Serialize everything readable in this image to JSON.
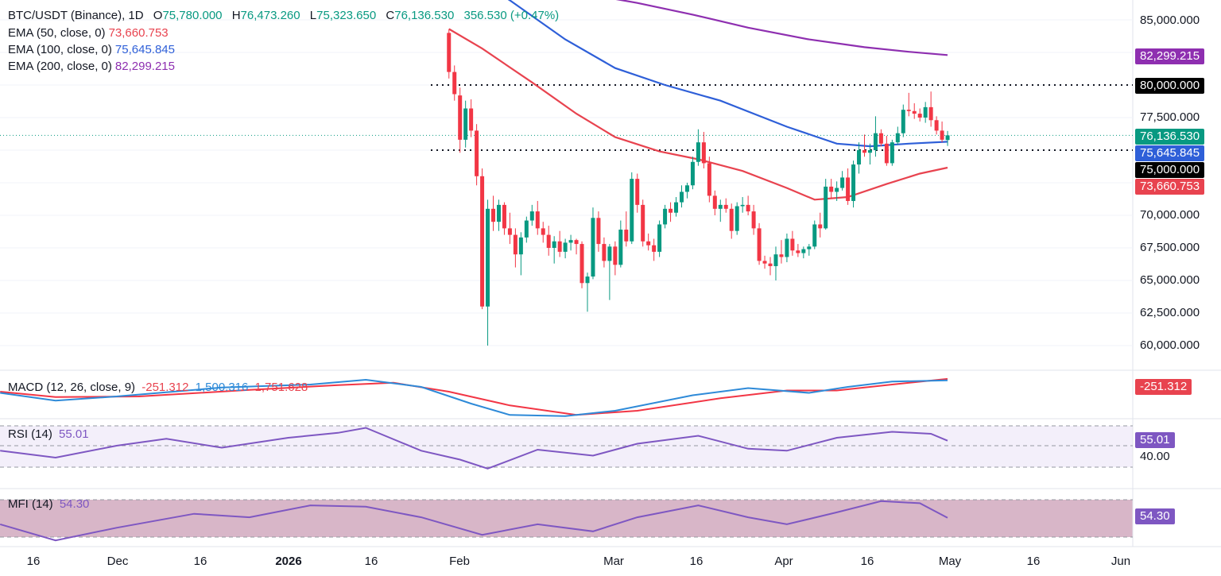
{
  "header": {
    "symbol": "BTC/USDT (Binance), 1D",
    "open_label": "O",
    "open": "75,780.000",
    "high_label": "H",
    "high": "76,473.260",
    "low_label": "L",
    "low": "75,323.650",
    "close_label": "C",
    "close": "76,136.530",
    "change": "356.530 (+0.47%)"
  },
  "ema": [
    {
      "label": "EMA (50, close, 0)",
      "value": "73,660.753",
      "color": "#e8434f"
    },
    {
      "label": "EMA (100, close, 0)",
      "value": "75,645.845",
      "color": "#2e5fd8"
    },
    {
      "label": "EMA (200, close, 0)",
      "value": "82,299.215",
      "color": "#8e2fb0"
    }
  ],
  "macd": {
    "label": "MACD (12, 26, close, 9)",
    "hist": "-251.312",
    "macd": "1,500.316",
    "signal": "1,751.628",
    "tag": "-251.312"
  },
  "rsi": {
    "label": "RSI (14)",
    "value": "55.01",
    "level": "40.00"
  },
  "mfi": {
    "label": "MFI (14)",
    "value": "54.30"
  },
  "price_axis": {
    "ticks": [
      "85,000.000",
      "77,500.000",
      "70,000.000",
      "67,500.000",
      "65,000.000",
      "62,500.000",
      "60,000.000"
    ],
    "tags": {
      "ema200": "82,299.215",
      "level80": "80,000.000",
      "last": "76,136.530",
      "ema100": "75,645.845",
      "level75": "75,000.000",
      "ema50": "73,660.753"
    }
  },
  "time_axis": [
    {
      "label": "16",
      "bold": false
    },
    {
      "label": "Dec",
      "bold": false
    },
    {
      "label": "16",
      "bold": false
    },
    {
      "label": "2026",
      "bold": true
    },
    {
      "label": "16",
      "bold": false
    },
    {
      "label": "Feb",
      "bold": false
    },
    {
      "label": "Mar",
      "bold": false
    },
    {
      "label": "16",
      "bold": false
    },
    {
      "label": "Apr",
      "bold": false
    },
    {
      "label": "16",
      "bold": false
    },
    {
      "label": "May",
      "bold": false
    },
    {
      "label": "16",
      "bold": false
    },
    {
      "label": "Jun",
      "bold": false
    }
  ],
  "chart_data": {
    "type": "candlestick",
    "symbol": "BTC/USDT",
    "interval": "1D",
    "ylim": [
      59000,
      87000
    ],
    "x_start": "2025-11-10",
    "x_end": "2026-06-04",
    "horizontal_levels": [
      80000,
      75000
    ],
    "candles": [
      [
        "2026-01-30",
        84000,
        84300,
        80500,
        81000
      ],
      [
        "2026-01-31",
        81000,
        81500,
        78800,
        79300
      ],
      [
        "2026-02-01",
        79200,
        79800,
        74800,
        75800
      ],
      [
        "2026-02-02",
        75800,
        78800,
        75200,
        78200
      ],
      [
        "2026-02-03",
        78200,
        78900,
        76000,
        76500
      ],
      [
        "2026-02-04",
        76500,
        77000,
        72300,
        73000
      ],
      [
        "2026-02-05",
        73000,
        73600,
        62800,
        63000
      ],
      [
        "2026-02-06",
        63000,
        71200,
        60000,
        70500
      ],
      [
        "2026-02-07",
        70500,
        71500,
        68800,
        69500
      ],
      [
        "2026-02-08",
        69500,
        71200,
        68800,
        70800
      ],
      [
        "2026-02-09",
        70800,
        71000,
        68500,
        69000
      ],
      [
        "2026-02-10",
        69000,
        70200,
        67800,
        68500
      ],
      [
        "2026-02-11",
        68500,
        69000,
        66000,
        67000
      ],
      [
        "2026-02-12",
        67000,
        68700,
        65400,
        68300
      ],
      [
        "2026-02-13",
        68300,
        69900,
        67900,
        69600
      ],
      [
        "2026-02-14",
        69600,
        70800,
        69200,
        70300
      ],
      [
        "2026-02-15",
        70300,
        71100,
        68500,
        69000
      ],
      [
        "2026-02-16",
        69000,
        69500,
        67900,
        68500
      ],
      [
        "2026-02-17",
        68500,
        69200,
        66900,
        67500
      ],
      [
        "2026-02-18",
        67500,
        68400,
        66300,
        68000
      ],
      [
        "2026-02-19",
        68000,
        68800,
        66800,
        67200
      ],
      [
        "2026-02-20",
        67200,
        68200,
        66700,
        67900
      ],
      [
        "2026-02-21",
        67900,
        68500,
        67300,
        68100
      ],
      [
        "2026-02-22",
        68100,
        68200,
        67000,
        67800
      ],
      [
        "2026-02-23",
        67800,
        68000,
        64400,
        64800
      ],
      [
        "2026-02-24",
        64800,
        65600,
        62600,
        65300
      ],
      [
        "2026-02-25",
        65300,
        70600,
        65100,
        69800
      ],
      [
        "2026-02-26",
        69800,
        70300,
        67200,
        67800
      ],
      [
        "2026-02-27",
        67800,
        68300,
        66000,
        66500
      ],
      [
        "2026-02-28",
        66500,
        67800,
        63500,
        67600
      ],
      [
        "2026-03-01",
        67600,
        68000,
        65400,
        66200
      ],
      [
        "2026-03-02",
        66200,
        69600,
        66000,
        68900
      ],
      [
        "2026-03-03",
        68900,
        70300,
        67600,
        68000
      ],
      [
        "2026-03-04",
        68000,
        73300,
        67800,
        72800
      ],
      [
        "2026-03-05",
        72800,
        73200,
        70200,
        70800
      ],
      [
        "2026-03-06",
        70800,
        71200,
        67600,
        68000
      ],
      [
        "2026-03-07",
        68000,
        68600,
        67300,
        67700
      ],
      [
        "2026-03-08",
        67700,
        68200,
        66500,
        67200
      ],
      [
        "2026-03-09",
        67200,
        69600,
        66800,
        69300
      ],
      [
        "2026-03-10",
        69300,
        70800,
        69000,
        70500
      ],
      [
        "2026-03-11",
        70500,
        71000,
        69500,
        70200
      ],
      [
        "2026-03-12",
        70200,
        71400,
        69900,
        71000
      ],
      [
        "2026-03-13",
        71000,
        72300,
        70600,
        71800
      ],
      [
        "2026-03-14",
        71800,
        72500,
        71300,
        72300
      ],
      [
        "2026-03-15",
        72300,
        74500,
        72000,
        74100
      ],
      [
        "2026-03-16",
        74100,
        76600,
        73800,
        75600
      ],
      [
        "2026-03-17",
        75600,
        76400,
        73600,
        74000
      ],
      [
        "2026-03-18",
        74000,
        74500,
        71000,
        71500
      ],
      [
        "2026-03-19",
        71500,
        71900,
        70000,
        70500
      ],
      [
        "2026-03-20",
        70500,
        71200,
        69500,
        70800
      ],
      [
        "2026-03-21",
        70800,
        71300,
        70200,
        70500
      ],
      [
        "2026-03-22",
        70500,
        70900,
        68200,
        68800
      ],
      [
        "2026-03-23",
        68800,
        71000,
        68500,
        70700
      ],
      [
        "2026-03-24",
        70700,
        71400,
        70200,
        70800
      ],
      [
        "2026-03-25",
        70800,
        71500,
        70000,
        70300
      ],
      [
        "2026-03-26",
        70300,
        70800,
        68500,
        69000
      ],
      [
        "2026-03-27",
        69000,
        69400,
        66200,
        66500
      ],
      [
        "2026-03-28",
        66500,
        66900,
        65900,
        66300
      ],
      [
        "2026-03-29",
        66300,
        66800,
        65400,
        66100
      ],
      [
        "2026-03-30",
        66100,
        67600,
        65000,
        67000
      ],
      [
        "2026-03-31",
        67000,
        68100,
        66300,
        66800
      ],
      [
        "2026-04-01",
        66800,
        68600,
        66400,
        68200
      ],
      [
        "2026-04-02",
        68200,
        68800,
        66900,
        67300
      ],
      [
        "2026-04-03",
        67300,
        67800,
        66800,
        67100
      ],
      [
        "2026-04-04",
        67100,
        67600,
        66700,
        67400
      ],
      [
        "2026-04-05",
        67400,
        67800,
        66900,
        67600
      ],
      [
        "2026-04-06",
        67600,
        69600,
        67400,
        69300
      ],
      [
        "2026-04-07",
        69300,
        70200,
        68300,
        69000
      ],
      [
        "2026-04-08",
        69000,
        72800,
        68900,
        72200
      ],
      [
        "2026-04-09",
        72200,
        72800,
        71300,
        71800
      ],
      [
        "2026-04-10",
        71800,
        72600,
        71100,
        72100
      ],
      [
        "2026-04-11",
        72100,
        73400,
        71900,
        72900
      ],
      [
        "2026-04-12",
        72900,
        73600,
        70800,
        71100
      ],
      [
        "2026-04-13",
        71100,
        74200,
        70600,
        73900
      ],
      [
        "2026-04-14",
        73900,
        75600,
        73200,
        75000
      ],
      [
        "2026-04-15",
        75000,
        76200,
        74500,
        74800
      ],
      [
        "2026-04-16",
        74800,
        75500,
        73900,
        75000
      ],
      [
        "2026-04-17",
        75000,
        77600,
        74500,
        76300
      ],
      [
        "2026-04-18",
        76300,
        76600,
        75300,
        75500
      ],
      [
        "2026-04-19",
        75500,
        76100,
        73800,
        74000
      ],
      [
        "2026-04-20",
        74000,
        75800,
        73800,
        75600
      ],
      [
        "2026-04-21",
        75600,
        76800,
        75400,
        76300
      ],
      [
        "2026-04-22",
        76300,
        78500,
        76000,
        78100
      ],
      [
        "2026-04-23",
        78100,
        79400,
        77600,
        78000
      ],
      [
        "2026-04-24",
        78000,
        78600,
        77400,
        77800
      ],
      [
        "2026-04-25",
        77800,
        78200,
        77200,
        77500
      ],
      [
        "2026-04-26",
        77500,
        78700,
        77100,
        78300
      ],
      [
        "2026-04-27",
        78300,
        79500,
        76800,
        77300
      ],
      [
        "2026-04-28",
        77300,
        77600,
        76200,
        76500
      ],
      [
        "2026-04-29",
        76500,
        77200,
        75600,
        75800
      ],
      [
        "2026-04-30",
        75780,
        76473.26,
        75323.65,
        76136.53
      ]
    ],
    "ema_series": [
      {
        "name": "EMA (50, close, 0)",
        "color": "#e8434f",
        "points": [
          [
            "2026-01-30",
            84300
          ],
          [
            "2026-02-05",
            82800
          ],
          [
            "2026-02-14",
            80200
          ],
          [
            "2026-02-22",
            77800
          ],
          [
            "2026-03-01",
            76000
          ],
          [
            "2026-03-09",
            74900
          ],
          [
            "2026-03-16",
            74300
          ],
          [
            "2026-03-24",
            73400
          ],
          [
            "2026-04-01",
            72100
          ],
          [
            "2026-04-06",
            71200
          ],
          [
            "2026-04-12",
            71400
          ],
          [
            "2026-04-19",
            72400
          ],
          [
            "2026-04-25",
            73200
          ],
          [
            "2026-04-30",
            73660.753
          ]
        ]
      },
      {
        "name": "EMA (100, close, 0)",
        "color": "#2e5fd8",
        "points": [
          [
            "2026-01-30",
            89500
          ],
          [
            "2026-02-10",
            86500
          ],
          [
            "2026-02-20",
            83500
          ],
          [
            "2026-03-01",
            81300
          ],
          [
            "2026-03-10",
            80000
          ],
          [
            "2026-03-20",
            78800
          ],
          [
            "2026-04-01",
            76800
          ],
          [
            "2026-04-10",
            75500
          ],
          [
            "2026-04-16",
            75300
          ],
          [
            "2026-04-23",
            75500
          ],
          [
            "2026-04-30",
            75645.845
          ]
        ]
      },
      {
        "name": "EMA (200, close, 0)",
        "color": "#8e2fb0",
        "points": [
          [
            "2026-02-25",
            86900
          ],
          [
            "2026-03-05",
            86300
          ],
          [
            "2026-03-15",
            85400
          ],
          [
            "2026-03-25",
            84400
          ],
          [
            "2026-04-05",
            83500
          ],
          [
            "2026-04-15",
            82900
          ],
          [
            "2026-04-23",
            82550
          ],
          [
            "2026-04-30",
            82299.215
          ]
        ]
      }
    ],
    "macd_series": {
      "macd": [
        [
          "2025-11-10",
          -600
        ],
        [
          "2025-11-20",
          -1900
        ],
        [
          "2025-12-01",
          -1200
        ],
        [
          "2025-12-20",
          300
        ],
        [
          "2026-01-05",
          800
        ],
        [
          "2026-01-15",
          1600
        ],
        [
          "2026-01-25",
          400
        ],
        [
          "2026-02-03",
          -2400
        ],
        [
          "2026-02-10",
          -4300
        ],
        [
          "2026-02-20",
          -4500
        ],
        [
          "2026-03-01",
          -3600
        ],
        [
          "2026-03-15",
          -1000
        ],
        [
          "2026-03-25",
          200
        ],
        [
          "2026-04-05",
          -600
        ],
        [
          "2026-04-12",
          400
        ],
        [
          "2026-04-20",
          1300
        ],
        [
          "2026-04-30",
          1500.316
        ]
      ],
      "signal": [
        [
          "2025-11-10",
          -400
        ],
        [
          "2025-11-20",
          -1300
        ],
        [
          "2025-12-05",
          -1200
        ],
        [
          "2025-12-25",
          -100
        ],
        [
          "2026-01-10",
          700
        ],
        [
          "2026-01-20",
          1100
        ],
        [
          "2026-01-30",
          -400
        ],
        [
          "2026-02-10",
          -2700
        ],
        [
          "2026-02-22",
          -4300
        ],
        [
          "2026-03-05",
          -3600
        ],
        [
          "2026-03-20",
          -1500
        ],
        [
          "2026-04-01",
          -200
        ],
        [
          "2026-04-10",
          -200
        ],
        [
          "2026-04-20",
          800
        ],
        [
          "2026-04-30",
          1751.628
        ]
      ]
    },
    "rsi_series": {
      "upper": 70,
      "lower": 30,
      "level_label": 40,
      "values": [
        [
          "2025-11-10",
          45
        ],
        [
          "2025-11-20",
          38
        ],
        [
          "2025-12-01",
          50
        ],
        [
          "2025-12-10",
          57
        ],
        [
          "2025-12-20",
          48
        ],
        [
          "2026-01-01",
          58
        ],
        [
          "2026-01-10",
          63
        ],
        [
          "2026-01-15",
          68
        ],
        [
          "2026-01-25",
          45
        ],
        [
          "2026-02-01",
          36
        ],
        [
          "2026-02-06",
          27
        ],
        [
          "2026-02-15",
          46
        ],
        [
          "2026-02-25",
          40
        ],
        [
          "2026-03-05",
          52
        ],
        [
          "2026-03-16",
          60
        ],
        [
          "2026-03-25",
          47
        ],
        [
          "2026-04-01",
          45
        ],
        [
          "2026-04-10",
          58
        ],
        [
          "2026-04-20",
          64
        ],
        [
          "2026-04-27",
          62
        ],
        [
          "2026-04-30",
          55.01
        ]
      ]
    },
    "mfi_series": {
      "upper": 80,
      "lower": 20,
      "values": [
        [
          "2025-11-10",
          45
        ],
        [
          "2025-11-20",
          22
        ],
        [
          "2025-12-01",
          40
        ],
        [
          "2025-12-15",
          60
        ],
        [
          "2025-12-25",
          55
        ],
        [
          "2026-01-05",
          72
        ],
        [
          "2026-01-15",
          70
        ],
        [
          "2026-01-25",
          55
        ],
        [
          "2026-02-05",
          30
        ],
        [
          "2026-02-15",
          45
        ],
        [
          "2026-02-25",
          35
        ],
        [
          "2026-03-05",
          55
        ],
        [
          "2026-03-16",
          72
        ],
        [
          "2026-03-25",
          55
        ],
        [
          "2026-04-01",
          45
        ],
        [
          "2026-04-10",
          62
        ],
        [
          "2026-04-18",
          78
        ],
        [
          "2026-04-25",
          75
        ],
        [
          "2026-04-30",
          54.3
        ]
      ]
    }
  }
}
